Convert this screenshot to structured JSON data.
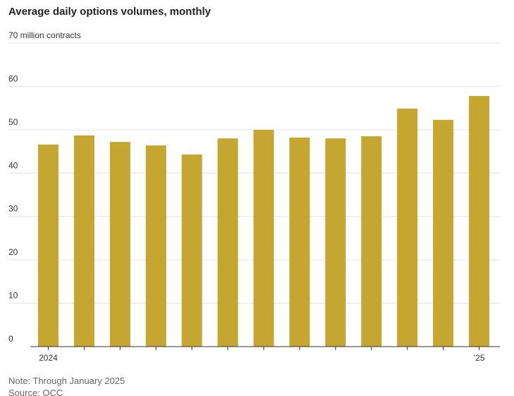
{
  "chart_data": {
    "type": "bar",
    "title": "Average daily options volumes, monthly",
    "categories": [
      "2024",
      null,
      null,
      null,
      null,
      null,
      null,
      null,
      null,
      null,
      null,
      null,
      "’25"
    ],
    "values": [
      46.6,
      48.7,
      47.2,
      46.4,
      44.3,
      48.0,
      50.0,
      48.2,
      48.0,
      48.5,
      54.9,
      52.3,
      57.8
    ],
    "color": "#c4a630",
    "ylim": [
      0,
      70
    ],
    "yticks": [
      0,
      10,
      20,
      30,
      40,
      50,
      60,
      {
        "value": 70,
        "label": "70 million contracts"
      }
    ],
    "grid": true,
    "note": "Note: Through January 2025",
    "source": "Source: OCC"
  }
}
